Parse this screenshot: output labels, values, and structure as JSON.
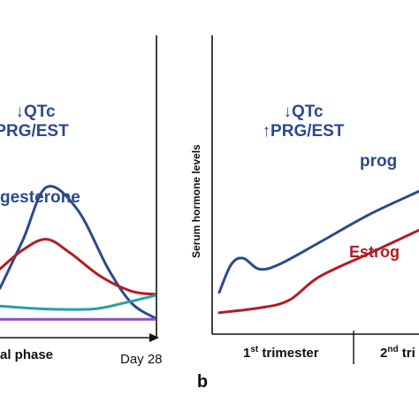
{
  "chart_data": [
    {
      "type": "line",
      "panel_label": "",
      "annotation_lines": [
        "↓QTc",
        "PRG/EST"
      ],
      "series_label_progesterone": "gesterone",
      "xaxis_phase_label": "al phase",
      "xaxis_end_label": "Day 28",
      "series": [
        {
          "key": "progesterone",
          "color": "#2b4a8c",
          "x": [
            0,
            0.15,
            0.3,
            0.5,
            0.7,
            0.85,
            1.0
          ],
          "values": [
            0.22,
            0.55,
            0.9,
            0.75,
            0.35,
            0.12,
            0.02
          ]
        },
        {
          "key": "estrogen",
          "color": "#b01e23",
          "x": [
            0,
            0.15,
            0.3,
            0.45,
            0.65,
            0.85,
            1.0
          ],
          "values": [
            0.35,
            0.48,
            0.55,
            0.46,
            0.3,
            0.2,
            0.18
          ]
        },
        {
          "key": "lh",
          "color": "#2aa0a0",
          "x": [
            0,
            0.3,
            0.6,
            0.8,
            1.0
          ],
          "values": [
            0.1,
            0.08,
            0.08,
            0.12,
            0.17
          ]
        },
        {
          "key": "fsh",
          "color": "#8a4fc0",
          "x": [
            0,
            0.5,
            1.0
          ],
          "values": [
            0.01,
            0.01,
            0.01
          ]
        }
      ]
    },
    {
      "type": "line",
      "panel_label": "b",
      "annotation_lines": [
        "↓QTc",
        "↑PRG/EST"
      ],
      "ylabel": "Serum hormone levels",
      "series_label_progesterone": "prog",
      "series_label_estrogen": "Estrog",
      "trimesters": [
        {
          "base": "1",
          "sup": "st",
          "rest": " trimester"
        },
        {
          "base": "2",
          "sup": "nd",
          "rest": " tri"
        }
      ],
      "series": [
        {
          "key": "progesterone",
          "color": "#2b4a8c",
          "x": [
            0,
            0.06,
            0.12,
            0.2,
            0.3,
            0.5,
            0.75,
            1.0
          ],
          "values": [
            0.2,
            0.38,
            0.42,
            0.35,
            0.38,
            0.52,
            0.7,
            0.85
          ]
        },
        {
          "key": "estrogen",
          "color": "#b01e23",
          "x": [
            0,
            0.2,
            0.35,
            0.5,
            0.75,
            1.0
          ],
          "values": [
            0.07,
            0.1,
            0.15,
            0.3,
            0.45,
            0.6
          ]
        }
      ]
    }
  ]
}
